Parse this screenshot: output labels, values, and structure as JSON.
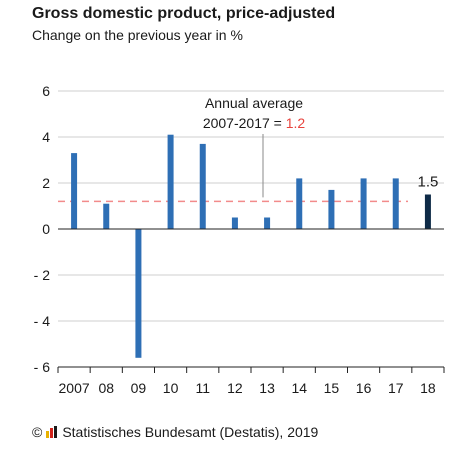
{
  "title": "Gross domestic product, price-adjusted",
  "subtitle": "Change on the previous year in %",
  "annotation": {
    "line1": "Annual average",
    "line2_prefix": "2007-2017 = ",
    "line2_value": "1.2"
  },
  "footer": {
    "copyright_symbol": "©",
    "text": "Statistisches Bundesamt (Destatis), 2019"
  },
  "colors": {
    "bar": "#2e6fb5",
    "last_bar": "#0e2a47",
    "average_line": "#f28b8b",
    "average_value": "#e8433d",
    "grid": "#cfcfcf",
    "axis": "#222222",
    "logo_bars": [
      "#e8b100",
      "#d1231b",
      "#1a1a1a"
    ]
  },
  "chart_data": {
    "type": "bar",
    "title": "Gross domestic product, price-adjusted",
    "subtitle": "Change on the previous year in %",
    "categories": [
      "2007",
      "08",
      "09",
      "10",
      "11",
      "12",
      "13",
      "14",
      "15",
      "16",
      "17",
      "18"
    ],
    "values": [
      3.3,
      1.1,
      -5.6,
      4.1,
      3.7,
      0.5,
      0.5,
      2.2,
      1.7,
      2.2,
      2.2,
      1.5
    ],
    "ylim": [
      -6,
      6
    ],
    "yticks": [
      6,
      4,
      2,
      0,
      -2,
      -4,
      -6
    ],
    "ytick_labels": [
      "6",
      "4",
      "2",
      "0",
      "- 2",
      "- 4",
      "- 6"
    ],
    "grid": true,
    "average": 1.2,
    "data_labels": [
      {
        "category": "18",
        "label": "1.5"
      }
    ]
  }
}
